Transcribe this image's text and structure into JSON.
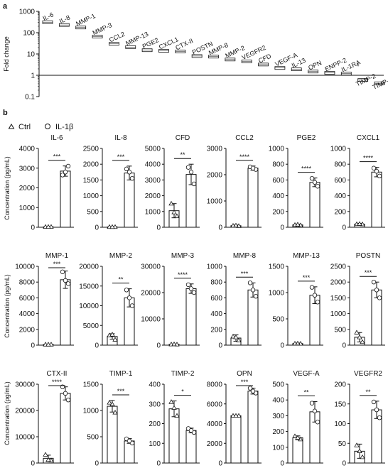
{
  "panel_a": {
    "letter": "a",
    "chart_data": {
      "type": "bar",
      "ylabel": "Fold change",
      "yscale": "log",
      "ylim": [
        0.1,
        1000
      ],
      "yticks": [
        "1000",
        "100",
        "10",
        "1",
        "0.1"
      ],
      "categories": [
        "IL-6",
        "IL-8",
        "MMP-1",
        "MMP-3",
        "CCL2",
        "MMP-13",
        "PGE2",
        "CXCL1",
        "CTX-II",
        "POSTN",
        "MMP-8",
        "MMP-2",
        "VEGFR2",
        "CFD",
        "VEGF-A",
        "IL-13",
        "OPN",
        "ENPP-2",
        "IL-1RA",
        "TIMP-2",
        "TIMP-1"
      ],
      "values": [
        310,
        230,
        175,
        65,
        30,
        21,
        15,
        14,
        13,
        8,
        7.5,
        5.5,
        4.5,
        3.2,
        2.2,
        1.9,
        1.5,
        1.3,
        1.2,
        0.6,
        0.42
      ],
      "annotations": [
        {
          "category": "IL-1RA",
          "text": "#"
        }
      ]
    }
  },
  "panel_b": {
    "letter": "b",
    "legend": {
      "ctrl": "Ctrl",
      "il1b": "IL-1β"
    },
    "ylabel": "Concentration (pg/mL)",
    "chart_data": [
      {
        "type": "bar",
        "title": "IL-6",
        "ylim": [
          0,
          4000
        ],
        "yticks": [
          "0",
          "1000",
          "2000",
          "3000",
          "4000"
        ],
        "categories": [
          "Ctrl",
          "IL-1β"
        ],
        "values": [
          20,
          2850
        ],
        "errors": [
          10,
          260
        ],
        "points": [
          [
            20,
            20,
            20
          ],
          [
            2650,
            3100,
            2800
          ]
        ],
        "significance": "***"
      },
      {
        "type": "bar",
        "title": "IL-8",
        "ylim": [
          0,
          2500
        ],
        "yticks": [
          "0",
          "500",
          "1000",
          "1500",
          "2000",
          "2500"
        ],
        "categories": [
          "Ctrl",
          "IL-1β"
        ],
        "values": [
          10,
          1720
        ],
        "errors": [
          5,
          220
        ],
        "points": [
          [
            10,
            10,
            10
          ],
          [
            1850,
            1550,
            1750
          ]
        ],
        "significance": "***"
      },
      {
        "type": "bar",
        "title": "CFD",
        "ylim": [
          0,
          5000
        ],
        "yticks": [
          "0",
          "1000",
          "2000",
          "3000",
          "4000",
          "5000"
        ],
        "categories": [
          "Ctrl",
          "IL-1β"
        ],
        "values": [
          1050,
          3350
        ],
        "errors": [
          450,
          650
        ],
        "points": [
          [
            1500,
            700,
            950
          ],
          [
            3800,
            2750,
            3500
          ]
        ],
        "significance": "**"
      },
      {
        "type": "bar",
        "title": "CCL2",
        "ylim": [
          0,
          3000
        ],
        "yticks": [
          "0",
          "1000",
          "2000",
          "3000"
        ],
        "categories": [
          "Ctrl",
          "IL-1β"
        ],
        "values": [
          60,
          2250
        ],
        "errors": [
          25,
          80
        ],
        "points": [
          [
            60,
            50,
            70
          ],
          [
            2300,
            2200,
            2250
          ]
        ],
        "significance": "****"
      },
      {
        "type": "bar",
        "title": "PGE2",
        "ylim": [
          0,
          1000
        ],
        "yticks": [
          "0",
          "200",
          "400",
          "600",
          "800",
          "1000"
        ],
        "categories": [
          "Ctrl",
          "IL-1β"
        ],
        "values": [
          30,
          570
        ],
        "errors": [
          10,
          55
        ],
        "points": [
          [
            30,
            25,
            35
          ],
          [
            620,
            520,
            570
          ]
        ],
        "significance": "****"
      },
      {
        "type": "bar",
        "title": "CXCL1",
        "ylim": [
          0,
          1000
        ],
        "yticks": [
          "0",
          "200",
          "400",
          "600",
          "800",
          "1000"
        ],
        "categories": [
          "Ctrl",
          "IL-1β"
        ],
        "values": [
          40,
          700
        ],
        "errors": [
          10,
          60
        ],
        "points": [
          [
            40,
            38,
            42
          ],
          [
            750,
            650,
            710
          ]
        ],
        "significance": "****"
      },
      {
        "type": "bar",
        "title": "MMP-1",
        "ylim": [
          0,
          10000
        ],
        "yticks": [
          "0",
          "2000",
          "4000",
          "6000",
          "8000",
          "10000"
        ],
        "categories": [
          "Ctrl",
          "IL-1β"
        ],
        "values": [
          80,
          8300
        ],
        "errors": [
          30,
          1100
        ],
        "points": [
          [
            80,
            80,
            80
          ],
          [
            9300,
            7800,
            8200
          ]
        ],
        "significance": "***"
      },
      {
        "type": "bar",
        "title": "MMP-2",
        "ylim": [
          0,
          20000
        ],
        "yticks": [
          "0",
          "5000",
          "10000",
          "15000",
          "20000"
        ],
        "categories": [
          "Ctrl",
          "IL-1β"
        ],
        "values": [
          2200,
          12000
        ],
        "errors": [
          700,
          2300
        ],
        "points": [
          [
            2500,
            1400,
            2700
          ],
          [
            14000,
            10000,
            12000
          ]
        ],
        "significance": "**"
      },
      {
        "type": "bar",
        "title": "MMP-3",
        "ylim": [
          0,
          30000
        ],
        "yticks": [
          "0",
          "10000",
          "20000",
          "30000"
        ],
        "categories": [
          "Ctrl",
          "IL-1β"
        ],
        "values": [
          300,
          21500
        ],
        "errors": [
          100,
          1800
        ],
        "points": [
          [
            300,
            250,
            350
          ],
          [
            23000,
            20000,
            21500
          ]
        ],
        "significance": "****"
      },
      {
        "type": "bar",
        "title": "MMP-8",
        "ylim": [
          0,
          1000
        ],
        "yticks": [
          "0",
          "200",
          "400",
          "600",
          "800",
          "1000"
        ],
        "categories": [
          "Ctrl",
          "IL-1β"
        ],
        "values": [
          90,
          700
        ],
        "errors": [
          40,
          90
        ],
        "points": [
          [
            110,
            60,
            100
          ],
          [
            790,
            620,
            700
          ]
        ],
        "significance": "***"
      },
      {
        "type": "bar",
        "title": "MMP-13",
        "ylim": [
          0,
          1500
        ],
        "yticks": [
          "0",
          "500",
          "1000",
          "1500"
        ],
        "categories": [
          "Ctrl",
          "IL-1β"
        ],
        "values": [
          30,
          950
        ],
        "errors": [
          10,
          160
        ],
        "points": [
          [
            30,
            28,
            32
          ],
          [
            1100,
            820,
            950
          ]
        ],
        "significance": "***"
      },
      {
        "type": "bar",
        "title": "POSTN",
        "ylim": [
          0,
          2500
        ],
        "yticks": [
          "0",
          "500",
          "1000",
          "1500",
          "2000",
          "2500"
        ],
        "categories": [
          "Ctrl",
          "IL-1β"
        ],
        "values": [
          250,
          1750
        ],
        "errors": [
          150,
          250
        ],
        "points": [
          [
            400,
            100,
            250
          ],
          [
            2000,
            1500,
            1750
          ]
        ],
        "significance": "***"
      },
      {
        "type": "bar",
        "title": "CTX-II",
        "ylim": [
          0,
          30000
        ],
        "yticks": [
          "0",
          "10000",
          "20000",
          "30000"
        ],
        "categories": [
          "Ctrl",
          "IL-1β"
        ],
        "values": [
          1800,
          26500
        ],
        "errors": [
          1200,
          2500
        ],
        "points": [
          [
            3200,
            1000,
            1200
          ],
          [
            29000,
            24000,
            26500
          ]
        ],
        "significance": "****"
      },
      {
        "type": "bar",
        "title": "TIMP-1",
        "ylim": [
          0,
          1500
        ],
        "yticks": [
          "0",
          "500",
          "1000",
          "1500"
        ],
        "categories": [
          "Ctrl",
          "IL-1β"
        ],
        "values": [
          1080,
          420
        ],
        "errors": [
          110,
          45
        ],
        "points": [
          [
            1150,
            960,
            1120
          ],
          [
            460,
            380,
            420
          ]
        ],
        "significance": "***"
      },
      {
        "type": "bar",
        "title": "TIMP-2",
        "ylim": [
          0,
          400
        ],
        "yticks": [
          "0",
          "100",
          "200",
          "300",
          "400"
        ],
        "categories": [
          "Ctrl",
          "IL-1β"
        ],
        "values": [
          275,
          165
        ],
        "errors": [
          40,
          12
        ],
        "points": [
          [
            310,
            240,
            280
          ],
          [
            175,
            155,
            165
          ]
        ],
        "significance": "*"
      },
      {
        "type": "bar",
        "title": "OPN",
        "ylim": [
          0,
          8000
        ],
        "yticks": [
          "0",
          "2000",
          "4000",
          "6000",
          "8000"
        ],
        "categories": [
          "Ctrl",
          "IL-1β"
        ],
        "values": [
          4800,
          7300
        ],
        "errors": [
          30,
          300
        ],
        "points": [
          [
            4800,
            4800,
            4800
          ],
          [
            7600,
            7100,
            7300
          ]
        ],
        "significance": "***"
      },
      {
        "type": "bar",
        "title": "VEGF-A",
        "ylim": [
          0,
          500
        ],
        "yticks": [
          "0",
          "100",
          "200",
          "300",
          "400",
          "500"
        ],
        "categories": [
          "Ctrl",
          "IL-1β"
        ],
        "values": [
          160,
          325
        ],
        "errors": [
          12,
          65
        ],
        "points": [
          [
            170,
            150,
            160
          ],
          [
            380,
            260,
            330
          ]
        ],
        "significance": "**"
      },
      {
        "type": "bar",
        "title": "VEGFR2",
        "ylim": [
          0,
          200
        ],
        "yticks": [
          "0",
          "50",
          "100",
          "150",
          "200"
        ],
        "categories": [
          "Ctrl",
          "IL-1β"
        ],
        "values": [
          30,
          135
        ],
        "errors": [
          18,
          22
        ],
        "points": [
          [
            45,
            15,
            30
          ],
          [
            155,
            115,
            135
          ]
        ],
        "significance": "**"
      }
    ]
  }
}
